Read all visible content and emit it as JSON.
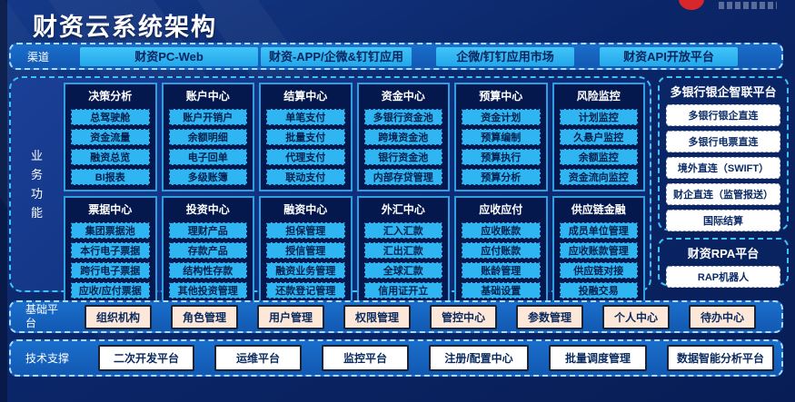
{
  "header": {
    "title": "财资云系统架构"
  },
  "colors": {
    "page_navy": "#0b2668",
    "band_blue": "#1565c0",
    "cyan_button": "#2eb5f2",
    "module_border": "#2f9fe3",
    "module_bg": "#05184e",
    "dashed_border": "#3fc2f7",
    "peach_button": "#fde7d8",
    "white_button": "#ffffff",
    "logo_red": "#d8262c"
  },
  "channels": {
    "label": "渠道",
    "items": [
      {
        "label": "财资PC-Web"
      },
      {
        "label": "财资-APP/企微&钉钉应用"
      },
      {
        "label": "企微/钉钉应用市场"
      },
      {
        "label": "财资API开放平台"
      }
    ]
  },
  "business": {
    "label": "业务功能",
    "modules": [
      {
        "title": "决策分析",
        "items": [
          "总驾驶舱",
          "资金流量",
          "融资总览",
          "BI报表"
        ]
      },
      {
        "title": "账户中心",
        "items": [
          "账户开销户",
          "余额明细",
          "电子回单",
          "多级账簿"
        ]
      },
      {
        "title": "结算中心",
        "items": [
          "单笔支付",
          "批量支付",
          "代理支付",
          "联动支付"
        ]
      },
      {
        "title": "资金中心",
        "items": [
          "多银行资金池",
          "跨境资金池",
          "银行资金池",
          "内部存贷管理"
        ]
      },
      {
        "title": "预算中心",
        "items": [
          "资金计划",
          "预算编制",
          "预算执行",
          "预算分析"
        ]
      },
      {
        "title": "风险监控",
        "items": [
          "计划监控",
          "久悬户监控",
          "余额监控",
          "资金流向监控"
        ]
      },
      {
        "title": "票据中心",
        "items": [
          "集团票据池",
          "本行电子票据",
          "跨行电子票据",
          "应收/应付票据"
        ]
      },
      {
        "title": "投资中心",
        "items": [
          "理财产品",
          "存款产品",
          "结构性存款",
          "其他投资管理"
        ]
      },
      {
        "title": "融资中心",
        "items": [
          "担保管理",
          "授信管理",
          "融资业务管理",
          "还款登记管理"
        ]
      },
      {
        "title": "外汇中心",
        "items": [
          "汇入汇款",
          "汇出汇款",
          "全球汇款",
          "信用证开立"
        ]
      },
      {
        "title": "应收应付",
        "items": [
          "应收账款",
          "应付账款",
          "账龄管理",
          "基础设置"
        ]
      },
      {
        "title": "供应链金融",
        "items": [
          "成员单位管理",
          "应收账款管理",
          "供应链对接",
          "投融交易"
        ]
      }
    ]
  },
  "smart_link_panel": {
    "title": "多银行银企智联平台",
    "items": [
      "多银行银企直连",
      "多银行电票直连",
      "境外直连（SWIFT）",
      "财企直连（监管报送）",
      "国际结算"
    ]
  },
  "rpa_panel": {
    "title": "财资RPA平台",
    "items": [
      "RAP机器人"
    ]
  },
  "base_platform": {
    "label": "基础平台",
    "items": [
      "组织机构",
      "角色管理",
      "用户管理",
      "权限管理",
      "管控中心",
      "参数管理",
      "个人中心",
      "待办中心"
    ]
  },
  "tech_support": {
    "label": "技术支撑",
    "items": [
      "二次开发平台",
      "运维平台",
      "监控平台",
      "注册/配置中心",
      "批量调度管理",
      "数据智能分析平台"
    ]
  }
}
